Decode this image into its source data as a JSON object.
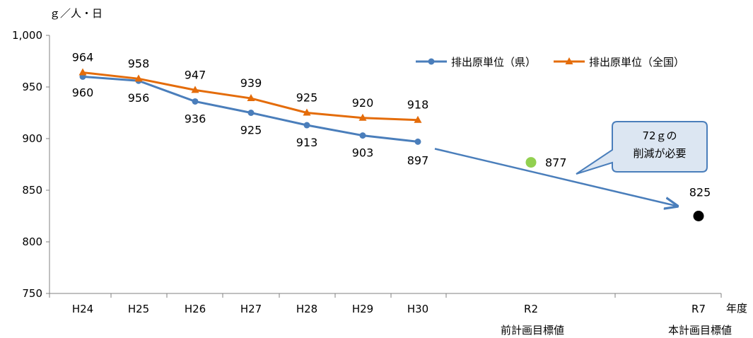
{
  "chart_data": {
    "type": "line",
    "ylabel": "ｇ／人・日",
    "xlabel": "年度",
    "ylim": [
      750,
      1000
    ],
    "yticks": [
      750,
      800,
      850,
      900,
      950,
      1000
    ],
    "ytick_labels": [
      "750",
      "800",
      "850",
      "900",
      "950",
      "1,000"
    ],
    "categories": [
      "H24",
      "H25",
      "H26",
      "H27",
      "H28",
      "H29",
      "H30",
      "R2",
      "R7"
    ],
    "category_sublabels": [
      "",
      "",
      "",
      "",
      "",
      "",
      "",
      "前計画目標値",
      "本計画目標値"
    ],
    "grid": false,
    "legend_position": "top-right",
    "series": [
      {
        "name": "排出原単位（県）",
        "color": "#4a7ebb",
        "marker": "circle",
        "values": [
          960,
          956,
          936,
          925,
          913,
          903,
          897,
          null,
          null
        ]
      },
      {
        "name": "排出原単位（全国）",
        "color": "#e46c0a",
        "marker": "triangle",
        "values": [
          964,
          958,
          947,
          939,
          925,
          920,
          918,
          null,
          null
        ]
      }
    ],
    "targets": [
      {
        "category": "R2",
        "value": 877,
        "color": "#92d050"
      },
      {
        "category": "R7",
        "value": 825,
        "color": "#000000"
      }
    ],
    "trend_arrow": {
      "from": {
        "category": "H30",
        "value": 897
      },
      "to": {
        "category": "R7",
        "value": 825
      },
      "color": "#4a7ebb"
    },
    "callout": {
      "lines": [
        "72ｇの",
        "削減が必要"
      ],
      "fill": "#dce6f2",
      "border": "#4a7ebb"
    }
  }
}
